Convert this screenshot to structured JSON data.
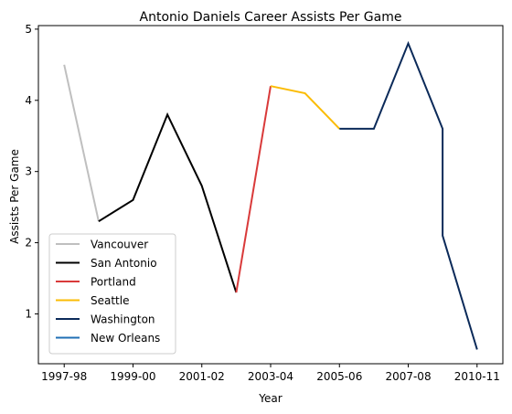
{
  "chart_data": {
    "type": "line",
    "title": "Antonio Daniels Career Assists Per Game",
    "xlabel": "Year",
    "ylabel": "Assists Per Game",
    "x_tick_labels": [
      "1997-98",
      "1999-00",
      "2001-02",
      "2003-04",
      "2005-06",
      "2007-08",
      "2010-11"
    ],
    "x_tick_positions": [
      0,
      2,
      4,
      6,
      8,
      10,
      12
    ],
    "y_ticks": [
      1,
      2,
      3,
      4,
      5
    ],
    "xlim": [
      -0.75,
      12.75
    ],
    "ylim": [
      0.3,
      5.05
    ],
    "grid": false,
    "legend_position": "lower-left",
    "series": [
      {
        "name": "Vancouver",
        "color": "#bfbfbf",
        "points": [
          [
            0,
            4.5
          ],
          [
            1,
            2.3
          ]
        ]
      },
      {
        "name": "San Antonio",
        "color": "#000000",
        "points": [
          [
            1,
            2.3
          ],
          [
            2,
            2.6
          ],
          [
            3,
            3.8
          ],
          [
            4,
            2.8
          ],
          [
            5,
            1.3
          ]
        ]
      },
      {
        "name": "Portland",
        "color": "#d93a3a",
        "points": [
          [
            5,
            1.3
          ],
          [
            6,
            4.2
          ]
        ]
      },
      {
        "name": "Seattle",
        "color": "#fbbc05",
        "points": [
          [
            6,
            4.2
          ],
          [
            7,
            4.1
          ],
          [
            8,
            3.6
          ]
        ]
      },
      {
        "name": "Washington",
        "color": "#0b2a59",
        "points": [
          [
            8,
            3.6
          ],
          [
            9,
            3.6
          ],
          [
            10,
            4.8
          ],
          [
            11,
            3.6
          ],
          [
            11,
            2.1
          ],
          [
            12,
            0.5
          ]
        ]
      },
      {
        "name": "New Orleans",
        "color": "#1f6fb5",
        "points": []
      }
    ]
  }
}
